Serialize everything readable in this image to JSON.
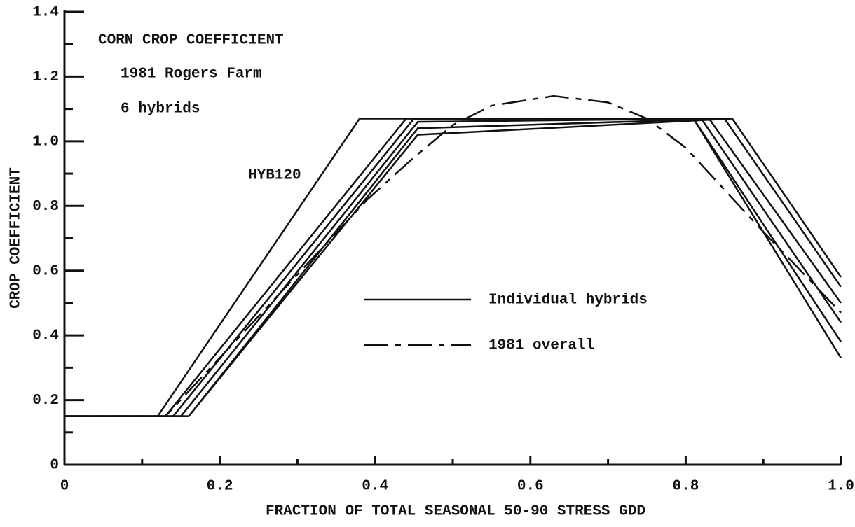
{
  "chart_data": {
    "type": "line",
    "title_lines": [
      "CORN CROP COEFFICIENT",
      "1981 Rogers Farm",
      "6 hybrids"
    ],
    "xlabel": "FRACTION OF TOTAL SEASONAL 50-90 STRESS GDD",
    "ylabel": "CROP COEFFICIENT",
    "annotation": "HYB120",
    "xlim": [
      0,
      1
    ],
    "ylim": [
      0,
      1.4
    ],
    "xticks": [
      0,
      0.2,
      0.4,
      0.6,
      0.8,
      {
        "value": 1,
        "label": "1.0"
      }
    ],
    "yticks": [
      0,
      0.2,
      0.4,
      0.6,
      0.8,
      {
        "value": 1,
        "label": "1.0"
      },
      1.2,
      1.4
    ],
    "series": [
      {
        "name": "Individual hybrids",
        "color": "#111111",
        "dash": "solid",
        "lines": [
          {
            "x": [
              0,
              0.12,
              0.38,
              0.81,
              1.0
            ],
            "values": [
              0.15,
              0.15,
              1.07,
              1.07,
              0.33
            ]
          },
          {
            "x": [
              0,
              0.13,
              0.44,
              0.81,
              1.0
            ],
            "values": [
              0.15,
              0.15,
              1.07,
              1.07,
              0.38
            ]
          },
          {
            "x": [
              0,
              0.14,
              0.45,
              0.82,
              1.0
            ],
            "values": [
              0.15,
              0.15,
              1.07,
              1.07,
              0.44
            ]
          },
          {
            "x": [
              0,
              0.15,
              0.455,
              0.83,
              1.0
            ],
            "values": [
              0.15,
              0.15,
              1.06,
              1.07,
              0.5
            ]
          },
          {
            "x": [
              0,
              0.16,
              0.455,
              0.85,
              1.0
            ],
            "values": [
              0.15,
              0.15,
              1.04,
              1.07,
              0.55
            ]
          },
          {
            "x": [
              0,
              0.16,
              0.455,
              0.86,
              1.0
            ],
            "values": [
              0.15,
              0.15,
              1.02,
              1.07,
              0.58
            ]
          }
        ]
      },
      {
        "name": "1981 overall",
        "color": "#111111",
        "dash": "dashdot",
        "lines": [
          {
            "x": [
              0,
              0.13,
              0.39,
              0.45,
              0.5,
              0.55,
              0.63,
              0.7,
              0.75,
              0.8,
              0.9,
              1.0
            ],
            "values": [
              0.15,
              0.15,
              0.82,
              0.95,
              1.05,
              1.11,
              1.14,
              1.12,
              1.07,
              0.98,
              0.72,
              0.47
            ]
          },
          {
            "x": [
              0.45,
              0.81
            ],
            "values": [
              1.07,
              1.07
            ]
          }
        ]
      }
    ]
  }
}
